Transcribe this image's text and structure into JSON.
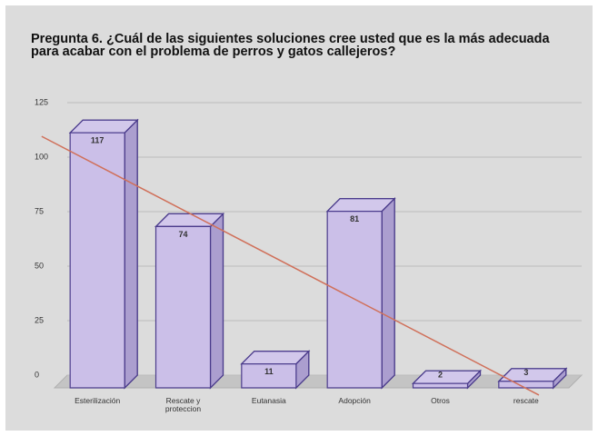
{
  "chart_data": {
    "type": "bar3d",
    "title": "Pregunta 6. ¿Cuál de las siguientes soluciones cree usted que es la más adecuada para acabar con el problema de perros y gatos callejeros?",
    "categories": [
      "Esterilización",
      "Rescate y proteccion",
      "Eutanasia",
      "Adopción",
      "Otros",
      "rescate"
    ],
    "values": [
      117,
      74,
      11,
      81,
      2,
      3
    ],
    "color": "#cbbfe8",
    "edge_color": "#4b3c8c",
    "ylim": [
      0,
      125
    ],
    "yticks": [
      0,
      25,
      50,
      75,
      100,
      125
    ],
    "grid": true,
    "trendline": true,
    "trendline_color": "#d0705a"
  }
}
